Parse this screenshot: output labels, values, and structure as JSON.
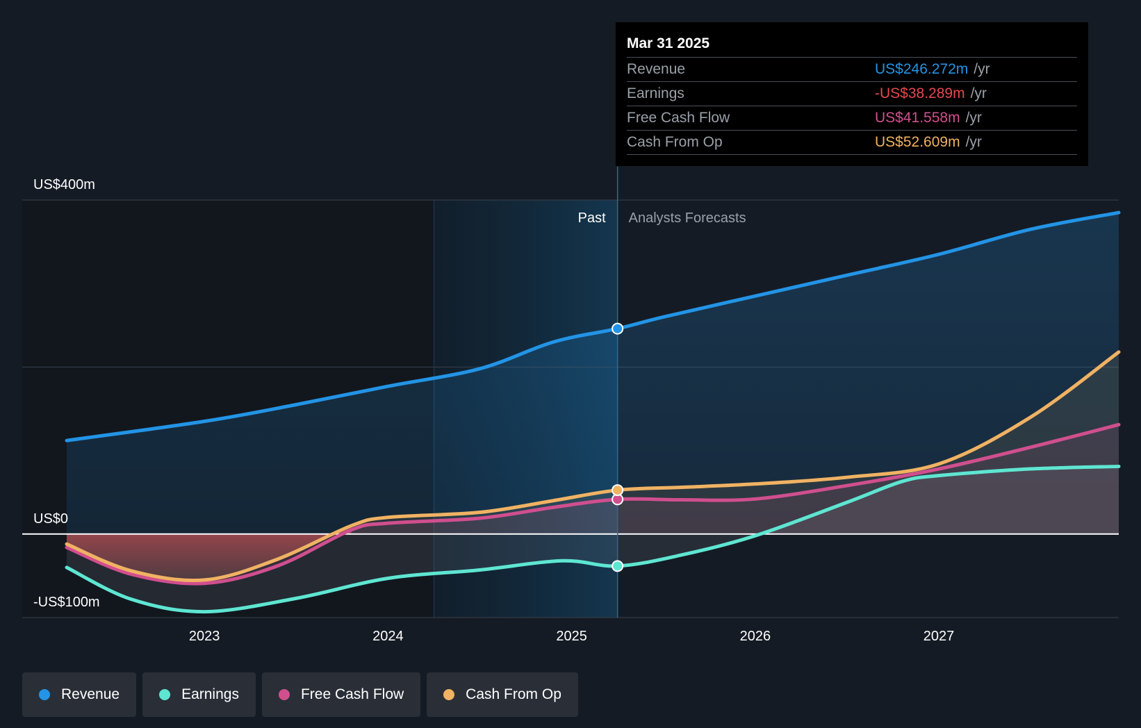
{
  "chart_data": {
    "type": "line",
    "title": "",
    "y_axis": {
      "labels": [
        "US$400m",
        "US$0",
        "-US$100m"
      ],
      "ylim": [
        -100,
        400
      ],
      "grid": true
    },
    "x_axis": {
      "ticks": [
        "2023",
        "2024",
        "2025",
        "2026",
        "2027"
      ],
      "range": [
        2022.25,
        2027.98
      ]
    },
    "regions": {
      "past_label": "Past",
      "forecast_label": "Analysts Forecasts",
      "divider_x": 2025.25
    },
    "series": [
      {
        "name": "Revenue",
        "color": "#2394e6",
        "points": [
          [
            2022.25,
            112
          ],
          [
            2023.0,
            135
          ],
          [
            2023.5,
            155
          ],
          [
            2024.0,
            177
          ],
          [
            2024.5,
            198
          ],
          [
            2024.9,
            230
          ],
          [
            2025.25,
            246
          ],
          [
            2025.5,
            260
          ],
          [
            2026.0,
            285
          ],
          [
            2026.5,
            310
          ],
          [
            2027.0,
            335
          ],
          [
            2027.5,
            365
          ],
          [
            2027.98,
            385
          ]
        ]
      },
      {
        "name": "Earnings",
        "color": "#5ee6d2",
        "points": [
          [
            2022.25,
            -40
          ],
          [
            2022.6,
            -78
          ],
          [
            2023.0,
            -93
          ],
          [
            2023.5,
            -77
          ],
          [
            2024.0,
            -53
          ],
          [
            2024.5,
            -43
          ],
          [
            2024.95,
            -32
          ],
          [
            2025.25,
            -38.289
          ],
          [
            2025.6,
            -25
          ],
          [
            2026.0,
            -2
          ],
          [
            2026.5,
            38
          ],
          [
            2026.8,
            63
          ],
          [
            2027.0,
            70
          ],
          [
            2027.5,
            78
          ],
          [
            2027.98,
            81
          ]
        ]
      },
      {
        "name": "Free Cash Flow",
        "color": "#d04f8e",
        "points": [
          [
            2022.25,
            -16
          ],
          [
            2022.6,
            -48
          ],
          [
            2023.0,
            -59
          ],
          [
            2023.4,
            -38
          ],
          [
            2023.8,
            5
          ],
          [
            2024.0,
            13
          ],
          [
            2024.5,
            19
          ],
          [
            2024.9,
            32
          ],
          [
            2025.25,
            41.558
          ],
          [
            2025.6,
            41
          ],
          [
            2026.0,
            42
          ],
          [
            2026.5,
            58
          ],
          [
            2027.0,
            78
          ],
          [
            2027.5,
            104
          ],
          [
            2027.98,
            131
          ]
        ]
      },
      {
        "name": "Cash From Op",
        "color": "#f0b263",
        "points": [
          [
            2022.25,
            -12
          ],
          [
            2022.6,
            -44
          ],
          [
            2023.0,
            -55
          ],
          [
            2023.4,
            -30
          ],
          [
            2023.8,
            10
          ],
          [
            2024.0,
            20
          ],
          [
            2024.5,
            26
          ],
          [
            2024.9,
            40
          ],
          [
            2025.25,
            52.609
          ],
          [
            2025.6,
            56
          ],
          [
            2026.0,
            60
          ],
          [
            2026.5,
            68
          ],
          [
            2027.0,
            84
          ],
          [
            2027.5,
            140
          ],
          [
            2027.98,
            218
          ]
        ]
      }
    ]
  },
  "tooltip": {
    "date": "Mar 31 2025",
    "rows": [
      {
        "label": "Revenue",
        "value": "US$246.272m",
        "unit": "/yr",
        "color": "#2394e6"
      },
      {
        "label": "Earnings",
        "value": "-US$38.289m",
        "unit": "/yr",
        "color": "#e5484d"
      },
      {
        "label": "Free Cash Flow",
        "value": "US$41.558m",
        "unit": "/yr",
        "color": "#d04f8e"
      },
      {
        "label": "Cash From Op",
        "value": "US$52.609m",
        "unit": "/yr",
        "color": "#f0b263"
      }
    ]
  },
  "legend": [
    {
      "label": "Revenue",
      "color": "#2394e6"
    },
    {
      "label": "Earnings",
      "color": "#5ee6d2"
    },
    {
      "label": "Free Cash Flow",
      "color": "#d04f8e"
    },
    {
      "label": "Cash From Op",
      "color": "#f0b263"
    }
  ]
}
